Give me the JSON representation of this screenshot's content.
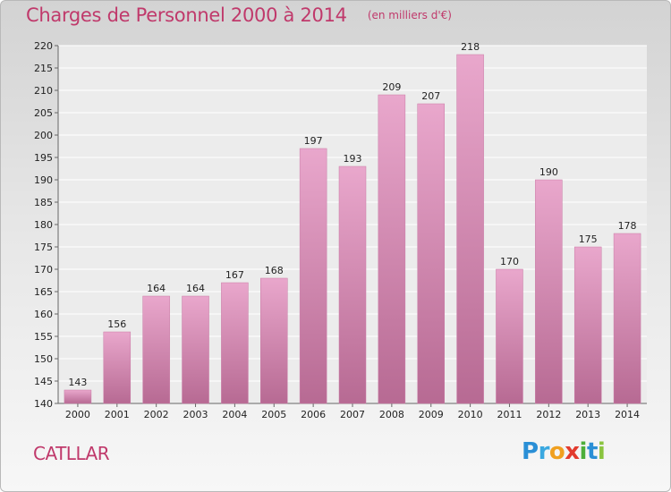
{
  "chart_data": {
    "type": "bar",
    "title": "Charges de Personnel 2000 à 2014",
    "subtitle": "(en milliers d'€)",
    "categories": [
      "2000",
      "2001",
      "2002",
      "2003",
      "2004",
      "2005",
      "2006",
      "2007",
      "2008",
      "2009",
      "2010",
      "2011",
      "2012",
      "2013",
      "2014"
    ],
    "values": [
      143,
      156,
      164,
      164,
      167,
      168,
      197,
      193,
      209,
      207,
      218,
      170,
      190,
      175,
      178
    ],
    "ylim": [
      140,
      220
    ],
    "yticks": [
      140,
      145,
      150,
      155,
      160,
      165,
      170,
      175,
      180,
      185,
      190,
      195,
      200,
      205,
      210,
      215,
      220
    ],
    "grid": true,
    "bar_color": "#d889b5"
  },
  "commune": "CATLLAR",
  "logo": {
    "letters": [
      {
        "ch": "P",
        "color": "#2a8fd6"
      },
      {
        "ch": "r",
        "color": "#3aa8e0"
      },
      {
        "ch": "o",
        "color": "#f0a020"
      },
      {
        "ch": "x",
        "color": "#e23b2e"
      },
      {
        "ch": "i",
        "color": "#4cae3a"
      },
      {
        "ch": "t",
        "color": "#2a8fd6"
      },
      {
        "ch": "i",
        "color": "#8ac43f"
      }
    ]
  }
}
